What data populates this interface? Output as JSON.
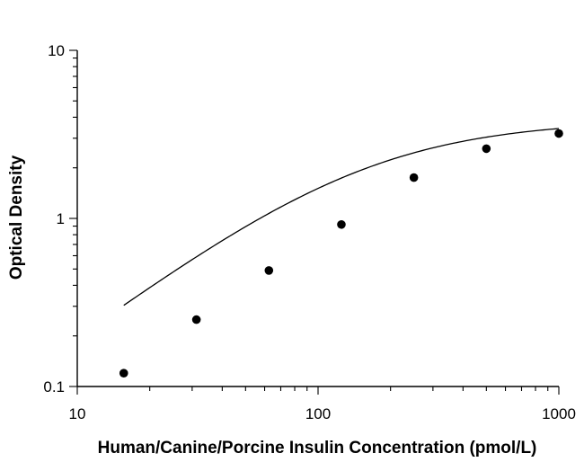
{
  "chart_data": {
    "type": "scatter",
    "xlabel": "Human/Canine/Porcine Insulin Concentration (pmol/L)",
    "ylabel": "Optical Density",
    "x_scale": "log",
    "y_scale": "log",
    "xlim": [
      10,
      1000
    ],
    "ylim": [
      0.1,
      10
    ],
    "x_ticks": [
      10,
      100,
      1000
    ],
    "x_tick_labels": [
      "10",
      "100",
      "1000"
    ],
    "y_ticks": [
      0.1,
      1,
      10
    ],
    "y_tick_labels": [
      "0.1",
      "1",
      "10"
    ],
    "grid": false,
    "series": [
      {
        "x": [
          15.6,
          31.25,
          62.5,
          125,
          250,
          500,
          1000
        ],
        "y": [
          0.12,
          0.25,
          0.49,
          0.92,
          1.75,
          2.6,
          3.2
        ],
        "marker": "circle",
        "color": "#000000"
      }
    ],
    "fit_curve": {
      "model": "4PL",
      "x_range": [
        15.6,
        1000
      ],
      "bottom": 0.01,
      "top": 3.85,
      "ec50": 150,
      "hill": 1.1,
      "color": "#000000"
    }
  }
}
